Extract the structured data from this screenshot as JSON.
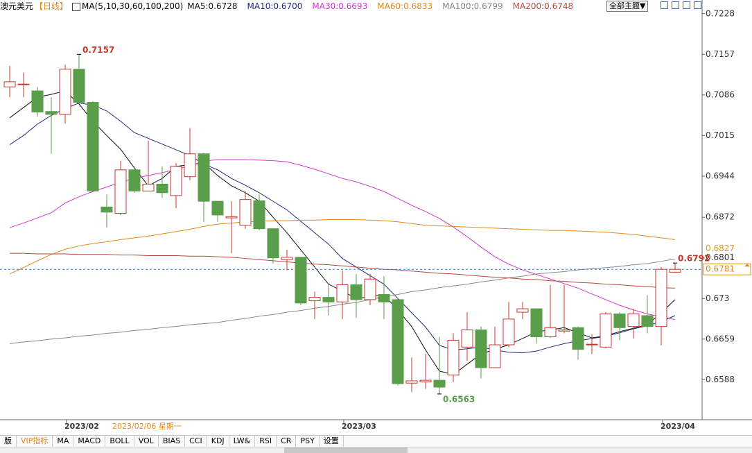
{
  "header": {
    "symbol": "澳元美元",
    "period": "【日线】",
    "ma_params": "MA(5,10,30,60,100,200)",
    "theme_button": "全部主题▼"
  },
  "tabs": [
    "版",
    "VIP指标",
    "MA",
    "MACD",
    "BOLL",
    "VOL",
    "BIAS",
    "CCI",
    "KDJ",
    "LW&",
    "RSI",
    "CR",
    "PSY",
    "设置"
  ],
  "chart_data": {
    "type": "candlestick",
    "categories": [
      null,
      null,
      null,
      null,
      null,
      "2023/02",
      null,
      null,
      null,
      null,
      null,
      null,
      null,
      null,
      null,
      null,
      null,
      null,
      null,
      null,
      null,
      null,
      null,
      null,
      null,
      "2023/03",
      null,
      null,
      null,
      null,
      null,
      null,
      null,
      null,
      null,
      null,
      null,
      null,
      null,
      null,
      null,
      null,
      null,
      null,
      null,
      null,
      null,
      null,
      "2023/04"
    ],
    "open": [
      0.71,
      0.7104,
      0.7093,
      0.7057,
      0.7052,
      0.7131,
      0.7073,
      0.689,
      0.6879,
      0.6955,
      0.6918,
      0.693,
      0.691,
      0.6943,
      0.6983,
      0.69,
      0.6871,
      0.6858,
      0.6901,
      0.6852,
      0.6798,
      0.6802,
      0.6726,
      0.6732,
      0.6724,
      0.6754,
      0.6728,
      0.6737,
      0.6728,
      0.6582,
      0.6584,
      0.6587,
      0.6596,
      0.6645,
      0.6675,
      0.6609,
      0.6649,
      0.6706,
      0.6712,
      0.6663,
      0.6673,
      0.6679,
      0.6649,
      0.6645,
      0.6703,
      0.6681,
      0.67,
      0.6681,
      0.6776
    ],
    "high": [
      0.7137,
      0.7125,
      0.71,
      0.7082,
      0.7139,
      0.7157,
      0.7075,
      0.6912,
      0.6971,
      0.6961,
      0.7006,
      0.6961,
      0.6967,
      0.7028,
      0.6985,
      0.69,
      0.69,
      0.6918,
      0.6912,
      0.6852,
      0.6815,
      0.6803,
      0.6742,
      0.6754,
      0.6779,
      0.6773,
      0.6773,
      0.6769,
      0.673,
      0.6627,
      0.6633,
      0.6663,
      0.6669,
      0.6706,
      0.6681,
      0.6681,
      0.6724,
      0.6724,
      0.6712,
      0.6754,
      0.6754,
      0.6681,
      0.6667,
      0.6706,
      0.6706,
      0.6712,
      0.6736,
      0.6785,
      0.6792
    ],
    "low": [
      0.7082,
      0.7082,
      0.7048,
      0.6983,
      0.7036,
      0.707,
      0.6916,
      0.6854,
      0.6876,
      0.6915,
      0.6918,
      0.6906,
      0.6888,
      0.6937,
      0.6864,
      0.6864,
      0.6809,
      0.6852,
      0.6849,
      0.6791,
      0.6779,
      0.6718,
      0.6694,
      0.67,
      0.6694,
      0.6696,
      0.6718,
      0.6694,
      0.6578,
      0.6566,
      0.6572,
      0.6563,
      0.6584,
      0.6621,
      0.659,
      0.6609,
      0.6645,
      0.6694,
      0.6651,
      0.6661,
      0.6669,
      0.6623,
      0.6633,
      0.6643,
      0.6657,
      0.666,
      0.6669,
      0.6648,
      0.6775
    ],
    "close": [
      0.7109,
      0.7105,
      0.7056,
      0.7052,
      0.7131,
      0.7073,
      0.6918,
      0.6881,
      0.6955,
      0.6918,
      0.693,
      0.6915,
      0.6961,
      0.6983,
      0.69,
      0.6876,
      0.6873,
      0.6903,
      0.6852,
      0.6801,
      0.6802,
      0.6722,
      0.6732,
      0.6724,
      0.6754,
      0.6728,
      0.6764,
      0.6724,
      0.6581,
      0.6586,
      0.6587,
      0.6575,
      0.6657,
      0.6675,
      0.6609,
      0.6649,
      0.6694,
      0.6712,
      0.6663,
      0.6679,
      0.6675,
      0.6641,
      0.665,
      0.6703,
      0.6679,
      0.6703,
      0.6681,
      0.6781,
      0.6781
    ],
    "up_color": "#c0392b",
    "down_color": "#5a9e4b",
    "series": [
      {
        "name": "MA5:0.6728",
        "color": "#111111",
        "values": [
          0.7046,
          0.7064,
          0.7082,
          0.7087,
          0.7093,
          0.707,
          0.704,
          0.7015,
          0.6991,
          0.6958,
          0.6927,
          0.694,
          0.6961,
          0.6964,
          0.6967,
          0.6945,
          0.6927,
          0.6915,
          0.69,
          0.6872,
          0.6845,
          0.6815,
          0.6785,
          0.6755,
          0.6743,
          0.673,
          0.6733,
          0.6736,
          0.671,
          0.6681,
          0.664,
          0.6603,
          0.6597,
          0.6615,
          0.6633,
          0.6641,
          0.6649,
          0.666,
          0.6672,
          0.6675,
          0.6679,
          0.667,
          0.6661,
          0.6665,
          0.6672,
          0.6678,
          0.6684,
          0.6705,
          0.6728
        ]
      },
      {
        "name": "MA10:0.6700",
        "color": "#1f2a7a",
        "values": [
          0.6999,
          0.7015,
          0.7035,
          0.705,
          0.7062,
          0.7072,
          0.7068,
          0.7058,
          0.704,
          0.702,
          0.701,
          0.7,
          0.699,
          0.698,
          0.6965,
          0.6955,
          0.694,
          0.6928,
          0.6915,
          0.69,
          0.6885,
          0.6865,
          0.6845,
          0.6825,
          0.68,
          0.6785,
          0.677,
          0.6755,
          0.673,
          0.6705,
          0.668,
          0.6648,
          0.664,
          0.6642,
          0.6645,
          0.664,
          0.6636,
          0.6635,
          0.6638,
          0.6645,
          0.6651,
          0.6656,
          0.666,
          0.6664,
          0.667,
          0.6677,
          0.6682,
          0.669,
          0.67
        ]
      },
      {
        "name": "MA30:0.6693",
        "color": "#d03ad0",
        "values": [
          0.6854,
          0.6862,
          0.6871,
          0.688,
          0.6897,
          0.6908,
          0.6917,
          0.6925,
          0.6933,
          0.694,
          0.6945,
          0.695,
          0.6956,
          0.6962,
          0.697,
          0.6973,
          0.6973,
          0.6973,
          0.6972,
          0.6971,
          0.6969,
          0.6963,
          0.6956,
          0.6948,
          0.694,
          0.6934,
          0.6926,
          0.6917,
          0.6905,
          0.6893,
          0.6882,
          0.687,
          0.6855,
          0.6838,
          0.682,
          0.6803,
          0.679,
          0.678,
          0.6772,
          0.6764,
          0.6756,
          0.6748,
          0.6738,
          0.6728,
          0.6718,
          0.671,
          0.6703,
          0.6698,
          0.6693
        ]
      },
      {
        "name": "MA60:0.6833",
        "color": "#e0891c",
        "values": [
          0.6773,
          0.6784,
          0.6796,
          0.6807,
          0.6816,
          0.6822,
          0.6826,
          0.6829,
          0.6833,
          0.6836,
          0.6839,
          0.6843,
          0.6847,
          0.6851,
          0.6856,
          0.686,
          0.6862,
          0.6864,
          0.6865,
          0.6866,
          0.6866,
          0.6867,
          0.6867,
          0.6868,
          0.6868,
          0.6868,
          0.6867,
          0.6866,
          0.6864,
          0.6861,
          0.6858,
          0.6857,
          0.6856,
          0.6855,
          0.6854,
          0.6853,
          0.6852,
          0.6851,
          0.685,
          0.6849,
          0.6849,
          0.6848,
          0.6847,
          0.6846,
          0.6844,
          0.6842,
          0.6839,
          0.6836,
          0.6833
        ]
      },
      {
        "name": "MA100:0.6799",
        "color": "#888888",
        "values": [
          0.6651,
          0.6654,
          0.6656,
          0.6659,
          0.6661,
          0.6664,
          0.6666,
          0.6669,
          0.6671,
          0.6674,
          0.6676,
          0.6679,
          0.6681,
          0.6684,
          0.6686,
          0.6688,
          0.6692,
          0.6695,
          0.6699,
          0.6702,
          0.6706,
          0.6709,
          0.6713,
          0.6716,
          0.672,
          0.6723,
          0.6728,
          0.6733,
          0.6737,
          0.6742,
          0.6745,
          0.6749,
          0.6752,
          0.6755,
          0.6759,
          0.6762,
          0.6766,
          0.6769,
          0.6773,
          0.6775,
          0.6777,
          0.678,
          0.6782,
          0.6784,
          0.6786,
          0.6789,
          0.6791,
          0.6795,
          0.6799
        ]
      },
      {
        "name": "MA200:0.6748",
        "color": "#b24a3c",
        "values": [
          0.6809,
          0.6809,
          0.6808,
          0.6808,
          0.6808,
          0.6807,
          0.6807,
          0.6807,
          0.6806,
          0.6806,
          0.6805,
          0.6805,
          0.6805,
          0.6804,
          0.6804,
          0.6803,
          0.6802,
          0.68,
          0.6798,
          0.6796,
          0.6794,
          0.6792,
          0.679,
          0.6789,
          0.6787,
          0.6785,
          0.6783,
          0.6781,
          0.678,
          0.6778,
          0.6776,
          0.6774,
          0.6773,
          0.6771,
          0.6769,
          0.6767,
          0.6766,
          0.6764,
          0.6763,
          0.6761,
          0.676,
          0.6758,
          0.6757,
          0.6755,
          0.6754,
          0.6752,
          0.6751,
          0.6749,
          0.6748
        ]
      }
    ],
    "ylim": [
      0.6518,
      0.7252
    ],
    "yticks": [
      0.6588,
      0.6659,
      0.673,
      0.6801,
      0.6872,
      0.6944,
      0.7015,
      0.7086,
      0.7157,
      0.7228
    ],
    "high_label": 0.7157,
    "low_label": 0.6563,
    "last_high_label": 0.6792,
    "ma_side_label": 0.6827,
    "price_line": 0.6781,
    "cursor_label": "2023/02/06 星期一"
  }
}
